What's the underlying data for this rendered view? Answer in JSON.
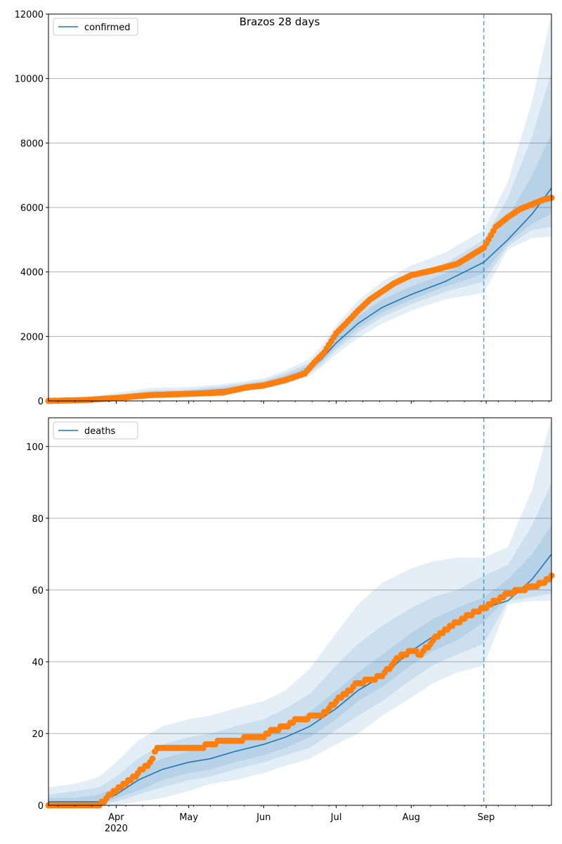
{
  "figure": {
    "title": "Brazos 28 days"
  },
  "colors": {
    "model": "#1f77b4",
    "observed": "#ff7f0e",
    "band": "#1f77b4",
    "grid": "#b0b0b0",
    "forecast_line": "#1f77b4"
  },
  "x_axis": {
    "ticks": [
      {
        "date": "2020-04-01",
        "label": "Apr",
        "sublabel": "2020"
      },
      {
        "date": "2020-05-01",
        "label": "May",
        "sublabel": ""
      },
      {
        "date": "2020-06-01",
        "label": "Jun",
        "sublabel": ""
      },
      {
        "date": "2020-07-01",
        "label": "Jul",
        "sublabel": ""
      },
      {
        "date": "2020-08-01",
        "label": "Aug",
        "sublabel": ""
      },
      {
        "date": "2020-09-01",
        "label": "Sep",
        "sublabel": ""
      }
    ],
    "range": [
      "2020-03-04",
      "2020-09-28"
    ]
  },
  "forecast_start": "2020-08-31",
  "chart_data": [
    {
      "type": "line",
      "legend": [
        "confirmed"
      ],
      "legend_position": "upper-left",
      "ylim": [
        0,
        12000
      ],
      "yticks": [
        "0",
        "2000",
        "4000",
        "6000",
        "8000",
        "10000",
        "12000"
      ],
      "grid": "y",
      "model": {
        "name": "confirmed",
        "x": [
          "2020-03-04",
          "2020-03-20",
          "2020-04-01",
          "2020-04-15",
          "2020-05-01",
          "2020-05-15",
          "2020-06-01",
          "2020-06-10",
          "2020-06-20",
          "2020-06-25",
          "2020-07-01",
          "2020-07-10",
          "2020-07-20",
          "2020-08-01",
          "2020-08-15",
          "2020-08-31",
          "2020-09-10",
          "2020-09-20",
          "2020-09-28"
        ],
        "y": [
          0,
          20,
          100,
          220,
          280,
          350,
          520,
          700,
          1000,
          1300,
          1800,
          2400,
          2900,
          3300,
          3700,
          4300,
          5000,
          5800,
          6600
        ],
        "bands": [
          {
            "lower": [
              0,
              0,
              40,
              120,
              170,
              240,
              380,
              520,
              780,
              1050,
              1450,
              1950,
              2400,
              2800,
              3150,
              3350,
              4700,
              5050,
              5100
            ],
            "upper": [
              60,
              120,
              250,
              400,
              430,
              520,
              700,
              950,
              1300,
              1700,
              2350,
              3100,
              3700,
              4200,
              4600,
              5300,
              6800,
              9300,
              12000
            ]
          },
          {
            "lower": [
              0,
              10,
              60,
              150,
              210,
              280,
              430,
              590,
              860,
              1140,
              1580,
              2120,
              2600,
              3000,
              3380,
              3700,
              4800,
              5300,
              5400
            ],
            "upper": [
              40,
              80,
              180,
              320,
              360,
              460,
              640,
              860,
              1180,
              1560,
              2150,
              2850,
              3400,
              3850,
              4250,
              5000,
              6300,
              8200,
              10200
            ]
          },
          {
            "lower": [
              0,
              15,
              80,
              180,
              240,
              310,
              470,
              640,
              920,
              1210,
              1680,
              2250,
              2740,
              3140,
              3540,
              3950,
              4900,
              5500,
              5800
            ],
            "upper": [
              20,
              40,
              140,
              270,
              320,
              410,
              590,
              790,
              1110,
              1440,
              1980,
              2620,
              3140,
              3550,
              3950,
              4700,
              5700,
              7000,
              8300
            ]
          }
        ]
      },
      "observed": {
        "name": "observed confirmed",
        "x": [
          "2020-03-04",
          "2020-03-20",
          "2020-04-01",
          "2020-04-15",
          "2020-05-01",
          "2020-05-15",
          "2020-05-25",
          "2020-06-01",
          "2020-06-10",
          "2020-06-18",
          "2020-06-22",
          "2020-06-26",
          "2020-07-01",
          "2020-07-05",
          "2020-07-10",
          "2020-07-15",
          "2020-07-20",
          "2020-07-25",
          "2020-08-01",
          "2020-08-10",
          "2020-08-20",
          "2020-08-31",
          "2020-09-05",
          "2020-09-10",
          "2020-09-15",
          "2020-09-20",
          "2020-09-25",
          "2020-09-28"
        ],
        "y": [
          0,
          30,
          90,
          180,
          220,
          260,
          420,
          480,
          650,
          850,
          1200,
          1500,
          2100,
          2400,
          2800,
          3150,
          3400,
          3650,
          3900,
          4050,
          4250,
          4750,
          5400,
          5700,
          5950,
          6100,
          6250,
          6300
        ]
      }
    },
    {
      "type": "line",
      "legend": [
        "deaths"
      ],
      "legend_position": "upper-left",
      "ylim": [
        0,
        108
      ],
      "yticks": [
        "0",
        "20",
        "40",
        "60",
        "80",
        "100"
      ],
      "grid": "y",
      "model": {
        "name": "deaths",
        "x": [
          "2020-03-04",
          "2020-03-15",
          "2020-03-25",
          "2020-04-01",
          "2020-04-10",
          "2020-04-20",
          "2020-05-01",
          "2020-05-10",
          "2020-05-20",
          "2020-06-01",
          "2020-06-10",
          "2020-06-20",
          "2020-07-01",
          "2020-07-10",
          "2020-07-20",
          "2020-08-01",
          "2020-08-10",
          "2020-08-20",
          "2020-08-31",
          "2020-09-10",
          "2020-09-20",
          "2020-09-28"
        ],
        "y": [
          1,
          1,
          1,
          3,
          7,
          10,
          12,
          13,
          15,
          17,
          19,
          22,
          27,
          32,
          36,
          43,
          47,
          51,
          55,
          57,
          63,
          70
        ],
        "bands": [
          {
            "lower": [
              0,
              0,
              0,
              0,
              1,
              2,
              4,
              6,
              7,
              9,
              11,
              13,
              17,
              20,
              25,
              30,
              34,
              37,
              39,
              56,
              57,
              57
            ],
            "upper": [
              5,
              6,
              8,
              12,
              18,
              22,
              24,
              25,
              27,
              29,
              32,
              38,
              48,
              56,
              62,
              66,
              68,
              69,
              69,
              72,
              88,
              108
            ]
          },
          {
            "lower": [
              0,
              0,
              0,
              1,
              3,
              5,
              7,
              8,
              10,
              12,
              14,
              16,
              21,
              25,
              29,
              35,
              39,
              42,
              45,
              57,
              58,
              59
            ],
            "upper": [
              3,
              4,
              5,
              8,
              13,
              17,
              19,
              20,
              22,
              24,
              27,
              31,
              39,
              45,
              50,
              55,
              58,
              60,
              64,
              67,
              78,
              90
            ]
          },
          {
            "lower": [
              0,
              0,
              0,
              2,
              4,
              7,
              9,
              10,
              12,
              14,
              16,
              19,
              24,
              29,
              33,
              39,
              43,
              46,
              51,
              58,
              60,
              62
            ],
            "upper": [
              2,
              2,
              3,
              5,
              10,
              13,
              15,
              16,
              18,
              20,
              22,
              26,
              32,
              37,
              42,
              48,
              52,
              55,
              58,
              63,
              70,
              78
            ]
          }
        ]
      },
      "observed": {
        "name": "observed deaths",
        "x": [
          "2020-03-04",
          "2020-03-25",
          "2020-03-28",
          "2020-04-01",
          "2020-04-05",
          "2020-04-10",
          "2020-04-15",
          "2020-04-18",
          "2020-04-25",
          "2020-05-05",
          "2020-05-10",
          "2020-05-15",
          "2020-06-01",
          "2020-06-05",
          "2020-06-10",
          "2020-06-15",
          "2020-06-25",
          "2020-06-28",
          "2020-07-01",
          "2020-07-05",
          "2020-07-08",
          "2020-07-10",
          "2020-07-15",
          "2020-07-20",
          "2020-07-25",
          "2020-07-28",
          "2020-08-02",
          "2020-08-05",
          "2020-08-10",
          "2020-08-15",
          "2020-08-20",
          "2020-08-25",
          "2020-08-31",
          "2020-09-05",
          "2020-09-10",
          "2020-09-15",
          "2020-09-20",
          "2020-09-25",
          "2020-09-28"
        ],
        "y": [
          0,
          0,
          2,
          4,
          6,
          9,
          12,
          16,
          16,
          16,
          17,
          18,
          19,
          21,
          22,
          24,
          25,
          27,
          29,
          31,
          33,
          34,
          35,
          36,
          40,
          42,
          43,
          42,
          46,
          49,
          51,
          53,
          55,
          57,
          59,
          60,
          61,
          62,
          64
        ]
      }
    }
  ]
}
